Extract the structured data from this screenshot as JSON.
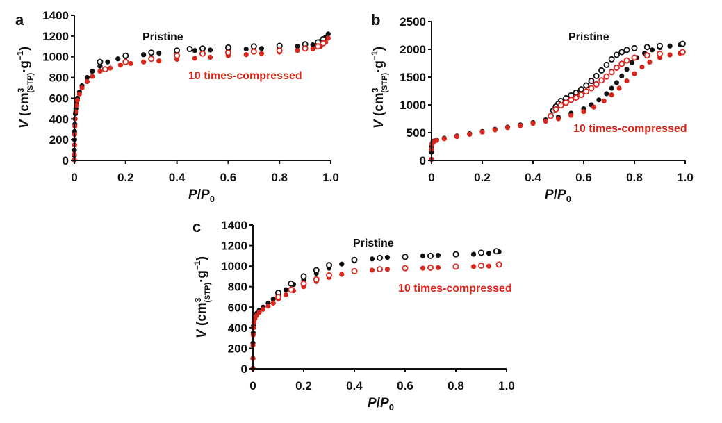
{
  "colors": {
    "pristine": "#111111",
    "compressed": "#d9261c"
  },
  "chart_data": [
    {
      "type": "scatter",
      "panel": "a",
      "xlabel_main": "P",
      "xlabel_sep": "/",
      "xlabel_p": "P",
      "xlabel_sub": "0",
      "ylabel_v": "V",
      "ylabel_unit": "cm",
      "ylabel_sup": "3",
      "ylabel_sub": "(STP)",
      "ylabel_dot": "·g",
      "ylabel_exp": "−1",
      "xlim": [
        0,
        1.0
      ],
      "ylim": [
        0,
        1400
      ],
      "xticks": [
        0,
        0.2,
        0.4,
        0.6,
        0.8,
        1.0
      ],
      "xtick_labels": [
        "0",
        "0.2",
        "0.4",
        "0.6",
        "0.8",
        "1.0"
      ],
      "yticks": [
        0,
        200,
        400,
        600,
        800,
        1000,
        1200,
        1400
      ],
      "ytick_labels": [
        "0",
        "200",
        "400",
        "600",
        "800",
        "1000",
        "1200",
        "1400"
      ],
      "series": [
        {
          "name": "Pristine",
          "kind": "adsorption",
          "color": "#111111",
          "fill": true,
          "x": [
            0.0,
            0.0,
            0.0,
            0.001,
            0.001,
            0.002,
            0.003,
            0.004,
            0.006,
            0.008,
            0.012,
            0.02,
            0.03,
            0.05,
            0.07,
            0.1,
            0.13,
            0.17,
            0.2,
            0.27,
            0.33,
            0.4,
            0.47,
            0.53,
            0.6,
            0.67,
            0.73,
            0.8,
            0.87,
            0.93,
            0.96,
            0.98,
            0.99
          ],
          "y": [
            5,
            50,
            100,
            200,
            280,
            350,
            400,
            450,
            500,
            550,
            600,
            660,
            720,
            800,
            860,
            910,
            950,
            980,
            1000,
            1020,
            1035,
            1050,
            1060,
            1065,
            1070,
            1075,
            1080,
            1090,
            1100,
            1115,
            1150,
            1190,
            1220
          ]
        },
        {
          "name": "Pristine",
          "kind": "desorption",
          "color": "#111111",
          "fill": false,
          "x": [
            0.97,
            0.95,
            0.9,
            0.8,
            0.7,
            0.6,
            0.5,
            0.45,
            0.4,
            0.3,
            0.2,
            0.1
          ],
          "y": [
            1170,
            1140,
            1120,
            1105,
            1100,
            1090,
            1080,
            1075,
            1060,
            1040,
            1010,
            950
          ]
        },
        {
          "name": "10 times-compressed",
          "kind": "adsorption",
          "color": "#d9261c",
          "fill": true,
          "x": [
            0.0,
            0.0,
            0.001,
            0.001,
            0.002,
            0.003,
            0.005,
            0.008,
            0.012,
            0.02,
            0.03,
            0.05,
            0.07,
            0.1,
            0.14,
            0.18,
            0.22,
            0.27,
            0.33,
            0.4,
            0.47,
            0.53,
            0.6,
            0.67,
            0.73,
            0.8,
            0.87,
            0.93,
            0.96,
            0.98,
            0.99
          ],
          "y": [
            5,
            60,
            150,
            250,
            330,
            400,
            470,
            530,
            580,
            640,
            700,
            760,
            810,
            860,
            890,
            920,
            935,
            950,
            960,
            975,
            985,
            995,
            1010,
            1020,
            1030,
            1045,
            1060,
            1075,
            1100,
            1140,
            1180
          ]
        },
        {
          "name": "10 times-compressed",
          "kind": "desorption",
          "color": "#d9261c",
          "fill": false,
          "x": [
            0.97,
            0.95,
            0.9,
            0.8,
            0.7,
            0.6,
            0.5,
            0.4,
            0.3,
            0.2,
            0.12
          ],
          "y": [
            1130,
            1100,
            1080,
            1060,
            1050,
            1040,
            1030,
            1010,
            980,
            950,
            880
          ]
        }
      ],
      "annotations": [
        "Pristine",
        "10 times-compressed"
      ]
    },
    {
      "type": "scatter",
      "panel": "b",
      "xlabel_main": "P",
      "xlabel_sep": "/",
      "xlabel_p": "P",
      "xlabel_sub": "0",
      "ylabel_v": "V",
      "ylabel_unit": "cm",
      "ylabel_sup": "3",
      "ylabel_sub": "(STP)",
      "ylabel_dot": "·g",
      "ylabel_exp": "−1",
      "xlim": [
        0,
        1.0
      ],
      "ylim": [
        0,
        2500
      ],
      "xticks": [
        0,
        0.2,
        0.4,
        0.6,
        0.8,
        1.0
      ],
      "xtick_labels": [
        "0",
        "0.2",
        "0.4",
        "0.6",
        "0.8",
        "1.0"
      ],
      "yticks": [
        0,
        500,
        1000,
        1500,
        2000,
        2500
      ],
      "ytick_labels": [
        "0",
        "500",
        "1000",
        "1500",
        "2000",
        "2500"
      ],
      "series": [
        {
          "name": "Pristine",
          "kind": "adsorption",
          "color": "#111111",
          "fill": true,
          "x": [
            0.0,
            0.0,
            0.0,
            0.002,
            0.005,
            0.01,
            0.02,
            0.05,
            0.1,
            0.15,
            0.2,
            0.25,
            0.3,
            0.35,
            0.4,
            0.45,
            0.5,
            0.55,
            0.6,
            0.63,
            0.66,
            0.69,
            0.71,
            0.73,
            0.75,
            0.77,
            0.79,
            0.81,
            0.84,
            0.87,
            0.9,
            0.94,
            0.98
          ],
          "y": [
            20,
            150,
            250,
            300,
            330,
            350,
            370,
            400,
            440,
            480,
            520,
            560,
            600,
            640,
            680,
            730,
            780,
            850,
            930,
            1000,
            1090,
            1200,
            1300,
            1400,
            1520,
            1640,
            1760,
            1850,
            1930,
            1990,
            2030,
            2060,
            2080
          ]
        },
        {
          "name": "Pristine",
          "kind": "desorption",
          "color": "#111111",
          "fill": false,
          "x": [
            0.99,
            0.9,
            0.85,
            0.8,
            0.77,
            0.75,
            0.73,
            0.71,
            0.69,
            0.67,
            0.65,
            0.63,
            0.61,
            0.59,
            0.57,
            0.55,
            0.53,
            0.51,
            0.5,
            0.49,
            0.48
          ],
          "y": [
            2100,
            2060,
            2040,
            2020,
            1990,
            1950,
            1900,
            1820,
            1720,
            1620,
            1520,
            1430,
            1350,
            1280,
            1220,
            1170,
            1120,
            1070,
            1020,
            970,
            900
          ]
        },
        {
          "name": "10 times-compressed",
          "kind": "adsorption",
          "color": "#d9261c",
          "fill": true,
          "x": [
            0.0,
            0.0,
            0.002,
            0.005,
            0.01,
            0.02,
            0.05,
            0.1,
            0.15,
            0.2,
            0.25,
            0.3,
            0.35,
            0.4,
            0.45,
            0.5,
            0.55,
            0.6,
            0.64,
            0.68,
            0.71,
            0.74,
            0.77,
            0.8,
            0.83,
            0.86,
            0.9,
            0.94,
            0.98
          ],
          "y": [
            20,
            200,
            290,
            320,
            340,
            360,
            390,
            430,
            470,
            510,
            550,
            590,
            625,
            665,
            705,
            750,
            810,
            880,
            960,
            1070,
            1180,
            1300,
            1430,
            1560,
            1680,
            1770,
            1850,
            1900,
            1930
          ]
        },
        {
          "name": "10 times-compressed",
          "kind": "desorption",
          "color": "#d9261c",
          "fill": false,
          "x": [
            0.99,
            0.9,
            0.85,
            0.8,
            0.77,
            0.75,
            0.73,
            0.71,
            0.69,
            0.67,
            0.65,
            0.63,
            0.61,
            0.59,
            0.57,
            0.55,
            0.53,
            0.51,
            0.49,
            0.47
          ],
          "y": [
            1950,
            1920,
            1890,
            1850,
            1800,
            1740,
            1670,
            1590,
            1510,
            1440,
            1370,
            1300,
            1240,
            1180,
            1130,
            1090,
            1040,
            990,
            920,
            800
          ]
        }
      ],
      "annotations": [
        "Pristine",
        "10 times-compressed"
      ]
    },
    {
      "type": "scatter",
      "panel": "c",
      "xlabel_main": "P",
      "xlabel_sep": "/",
      "xlabel_p": "P",
      "xlabel_sub": "0",
      "ylabel_v": "V",
      "ylabel_unit": "cm",
      "ylabel_sup": "3",
      "ylabel_sub": "(STP)",
      "ylabel_dot": "·g",
      "ylabel_exp": "−1",
      "xlim": [
        0,
        1.0
      ],
      "ylim": [
        0,
        1400
      ],
      "xticks": [
        0,
        0.2,
        0.4,
        0.6,
        0.8,
        1.0
      ],
      "xtick_labels": [
        "0",
        "0.2",
        "0.4",
        "0.6",
        "0.8",
        "1.0"
      ],
      "yticks": [
        0,
        200,
        400,
        600,
        800,
        1000,
        1200,
        1400
      ],
      "ytick_labels": [
        "0",
        "200",
        "400",
        "600",
        "800",
        "1000",
        "1200",
        "1400"
      ],
      "series": [
        {
          "name": "Pristine",
          "kind": "adsorption",
          "color": "#111111",
          "fill": true,
          "x": [
            0.0,
            0.0,
            0.0,
            0.001,
            0.002,
            0.004,
            0.008,
            0.015,
            0.025,
            0.04,
            0.06,
            0.08,
            0.1,
            0.13,
            0.16,
            0.2,
            0.25,
            0.3,
            0.35,
            0.4,
            0.47,
            0.53,
            0.6,
            0.67,
            0.73,
            0.8,
            0.87,
            0.93,
            0.97
          ],
          "y": [
            5,
            100,
            250,
            350,
            420,
            470,
            510,
            540,
            570,
            600,
            640,
            680,
            720,
            770,
            820,
            870,
            930,
            980,
            1020,
            1050,
            1070,
            1085,
            1095,
            1100,
            1105,
            1110,
            1115,
            1125,
            1140
          ]
        },
        {
          "name": "Pristine",
          "kind": "desorption",
          "color": "#111111",
          "fill": false,
          "x": [
            0.96,
            0.9,
            0.8,
            0.7,
            0.6,
            0.5,
            0.4,
            0.3,
            0.25,
            0.2,
            0.15,
            0.1
          ],
          "y": [
            1145,
            1130,
            1115,
            1100,
            1090,
            1080,
            1060,
            1010,
            960,
            900,
            830,
            740
          ]
        },
        {
          "name": "10 times-compressed",
          "kind": "adsorption",
          "color": "#d9261c",
          "fill": true,
          "x": [
            0.0,
            0.0,
            0.0,
            0.001,
            0.002,
            0.004,
            0.008,
            0.015,
            0.025,
            0.04,
            0.06,
            0.08,
            0.1,
            0.13,
            0.16,
            0.2,
            0.25,
            0.3,
            0.35,
            0.4,
            0.47,
            0.53,
            0.6,
            0.67,
            0.73,
            0.8,
            0.87,
            0.93,
            0.97
          ],
          "y": [
            5,
            100,
            230,
            330,
            400,
            450,
            490,
            520,
            550,
            580,
            610,
            640,
            680,
            720,
            760,
            800,
            850,
            890,
            920,
            945,
            960,
            970,
            975,
            980,
            985,
            990,
            995,
            1000,
            1010
          ]
        },
        {
          "name": "10 times-compressed",
          "kind": "desorption",
          "color": "#d9261c",
          "fill": false,
          "x": [
            0.97,
            0.9,
            0.8,
            0.7,
            0.6,
            0.5,
            0.4,
            0.3,
            0.25,
            0.2,
            0.15,
            0.1
          ],
          "y": [
            1015,
            1005,
            995,
            985,
            980,
            970,
            950,
            910,
            870,
            830,
            770,
            700
          ]
        }
      ],
      "annotations": [
        "Pristine",
        "10 times-compressed"
      ]
    }
  ]
}
